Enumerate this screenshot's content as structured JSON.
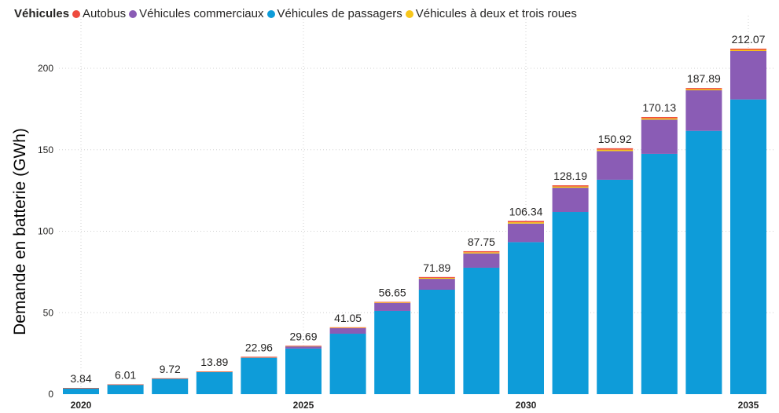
{
  "chart_data": {
    "type": "bar",
    "stacked": true,
    "legend_title": "Véhicules",
    "legend_position": "top-left",
    "ylabel": "Demande en batterie (GWh)",
    "xlabel": "",
    "ylim": [
      0,
      220
    ],
    "yticks": [
      0,
      50,
      100,
      150,
      200
    ],
    "xticks_shown": [
      "2020",
      "2025",
      "2030",
      "2035"
    ],
    "grid": true,
    "categories": [
      "2020",
      "2021",
      "2022",
      "2023",
      "2024",
      "2025",
      "2026",
      "2027",
      "2028",
      "2029",
      "2030",
      "2031",
      "2032",
      "2033",
      "2034",
      "2035"
    ],
    "series": [
      {
        "name": "Véhicules de passagers",
        "color": "#0E9CD9",
        "values": [
          3.8,
          5.95,
          9.6,
          13.6,
          22.2,
          28.0,
          37.1,
          51.1,
          64.1,
          77.6,
          93.3,
          111.8,
          131.6,
          147.5,
          161.6,
          180.9
        ]
      },
      {
        "name": "Véhicules commerciaux",
        "color": "#8A5CB5",
        "values": [
          0.02,
          0.03,
          0.05,
          0.2,
          0.4,
          1.4,
          3.4,
          4.8,
          6.7,
          8.8,
          11.4,
          14.9,
          17.6,
          21.0,
          24.9,
          29.7
        ]
      },
      {
        "name": "Véhicules à deux et trois roues",
        "color": "#F7C61B",
        "values": [
          0.01,
          0.02,
          0.04,
          0.05,
          0.18,
          0.15,
          0.27,
          0.37,
          0.54,
          0.67,
          0.82,
          0.74,
          0.86,
          0.81,
          0.69,
          0.73
        ]
      },
      {
        "name": "Autobus",
        "color": "#EE4B3E",
        "values": [
          0.01,
          0.01,
          0.03,
          0.04,
          0.18,
          0.14,
          0.28,
          0.38,
          0.55,
          0.68,
          0.82,
          0.75,
          0.86,
          0.82,
          0.7,
          0.74
        ]
      }
    ],
    "totals": [
      "3.84",
      "6.01",
      "9.72",
      "13.89",
      "22.96",
      "29.69",
      "41.05",
      "56.65",
      "71.89",
      "87.75",
      "106.34",
      "128.19",
      "150.92",
      "170.13",
      "187.89",
      "212.07"
    ],
    "legend_order": [
      "Autobus",
      "Véhicules commerciaux",
      "Véhicules de passagers",
      "Véhicules à deux et trois roues"
    ]
  }
}
